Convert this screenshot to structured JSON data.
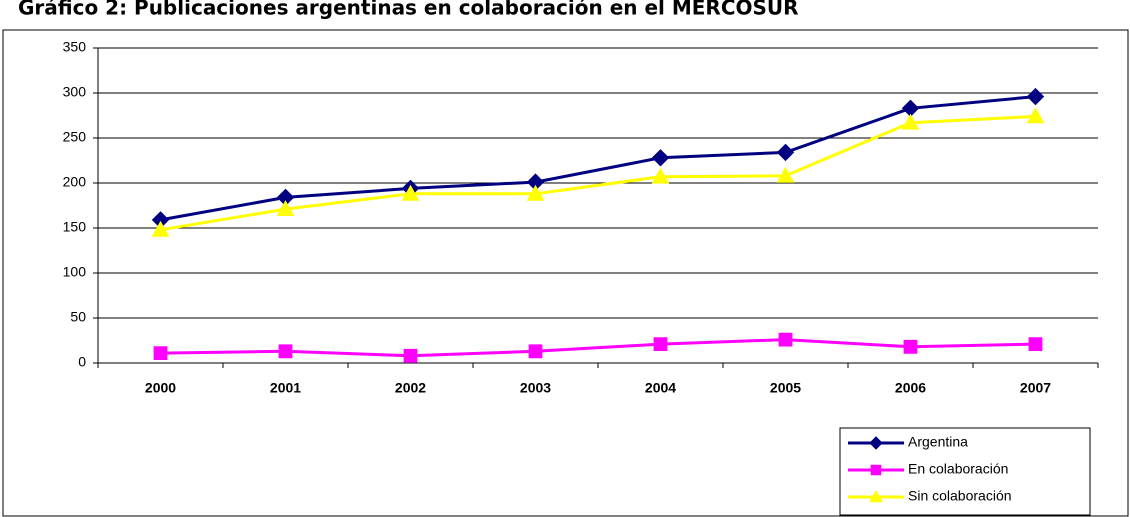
{
  "chart_data": {
    "type": "line",
    "title": "Gráfico 2: Publicaciones argentinas en colaboración en el MERCOSUR",
    "categories": [
      "2000",
      "2001",
      "2002",
      "2003",
      "2004",
      "2005",
      "2006",
      "2007"
    ],
    "series": [
      {
        "name": "Argentina",
        "color": "#000080",
        "marker": "diamond",
        "values": [
          159,
          184,
          194,
          201,
          228,
          234,
          283,
          296
        ]
      },
      {
        "name": "En colaboración",
        "color": "#ff00ff",
        "marker": "square",
        "values": [
          11,
          13,
          8,
          13,
          21,
          26,
          18,
          21
        ]
      },
      {
        "name": "Sin colaboración",
        "color": "#ffff00",
        "marker": "triangle",
        "values": [
          148,
          171,
          188,
          188,
          207,
          208,
          267,
          274
        ]
      }
    ],
    "ylim": [
      0,
      350
    ],
    "yticks": [
      0,
      50,
      100,
      150,
      200,
      250,
      300,
      350
    ],
    "grid": true,
    "legend": "bottom-right"
  }
}
